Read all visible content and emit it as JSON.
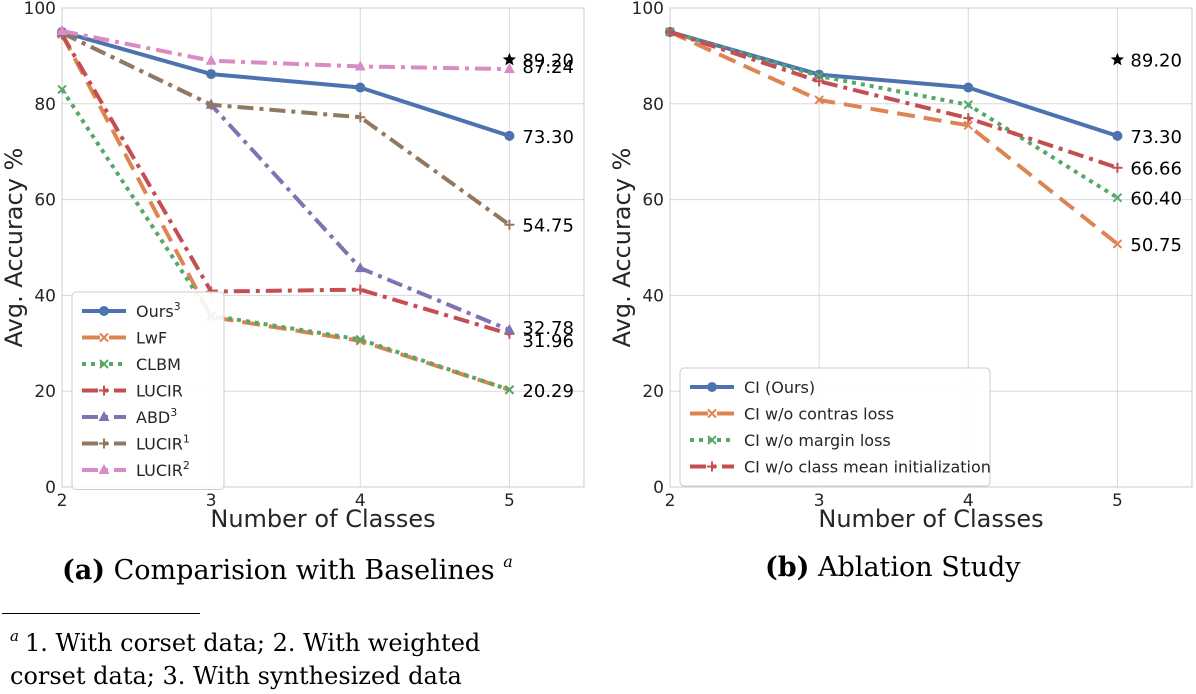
{
  "chart_data": [
    {
      "type": "line",
      "panel_caption": {
        "label": "(a)",
        "text": "Comparision with Baselines",
        "superscript": "a"
      },
      "xlabel": "Number of Classes",
      "ylabel": "Avg. Accuracy %",
      "x": [
        2,
        3,
        4,
        5
      ],
      "xticks": [
        "2",
        "3",
        "4",
        "5"
      ],
      "yticks": [
        "0",
        "20",
        "40",
        "60",
        "80",
        "100"
      ],
      "ylim": [
        0,
        100
      ],
      "xlim": [
        2,
        5.5
      ],
      "grid": true,
      "legend_position": "lower-left",
      "series": [
        {
          "name": "Ours",
          "sup": "3",
          "values": [
            95.0,
            86.2,
            83.4,
            73.3
          ],
          "color": "#4c72b0",
          "dash": "solid",
          "marker": "circle"
        },
        {
          "name": "LwF",
          "sup": "",
          "values": [
            94.5,
            35.5,
            30.5,
            20.29
          ],
          "color": "#dd8452",
          "dash": "dashed",
          "marker": "x"
        },
        {
          "name": "CLBM",
          "sup": "",
          "values": [
            83.0,
            35.8,
            30.8,
            20.29
          ],
          "color": "#55a868",
          "dash": "dotted",
          "marker": "x"
        },
        {
          "name": "LUCIR",
          "sup": "",
          "values": [
            94.5,
            40.8,
            41.2,
            31.96
          ],
          "color": "#c44e52",
          "dash": "dashdot",
          "marker": "plus"
        },
        {
          "name": "ABD",
          "sup": "3",
          "values": [
            94.8,
            79.8,
            45.7,
            32.78
          ],
          "color": "#8172b3",
          "dash": "dashdot",
          "marker": "triangle"
        },
        {
          "name": "LUCIR",
          "sup": "1",
          "values": [
            94.8,
            79.8,
            77.2,
            54.75
          ],
          "color": "#937860",
          "dash": "dashdot",
          "marker": "plus"
        },
        {
          "name": "LUCIR",
          "sup": "2",
          "values": [
            95.2,
            89.0,
            87.8,
            87.24
          ],
          "color": "#da8bc3",
          "dash": "dashdot",
          "marker": "triangle"
        }
      ],
      "star_point": {
        "x": 5,
        "y": 89.2,
        "color": "#000000"
      },
      "annotations": [
        {
          "text": "89.20",
          "y": 89.2
        },
        {
          "text": "87.24",
          "y": 87.24
        },
        {
          "text": "73.30",
          "y": 73.3
        },
        {
          "text": "54.75",
          "y": 54.75
        },
        {
          "text": "32.78",
          "y": 32.78
        },
        {
          "text": "31.96",
          "y": 31.96
        },
        {
          "text": "20.29",
          "y": 20.29
        }
      ]
    },
    {
      "type": "line",
      "panel_caption": {
        "label": "(b)",
        "text": "Ablation Study",
        "superscript": ""
      },
      "xlabel": "Number of Classes",
      "ylabel": "Avg. Accuracy %",
      "x": [
        2,
        3,
        4,
        5
      ],
      "xticks": [
        "2",
        "3",
        "4",
        "5"
      ],
      "yticks": [
        "0",
        "20",
        "40",
        "60",
        "80",
        "100"
      ],
      "ylim": [
        0,
        100
      ],
      "xlim": [
        2,
        5.5
      ],
      "grid": true,
      "legend_position": "lower-left",
      "series": [
        {
          "name": "CI (Ours)",
          "sup": "",
          "values": [
            95.0,
            86.1,
            83.4,
            73.3
          ],
          "color": "#4c72b0",
          "dash": "solid",
          "marker": "circle"
        },
        {
          "name": "CI w/o contras loss",
          "sup": "",
          "values": [
            95.0,
            80.8,
            75.5,
            50.75
          ],
          "color": "#dd8452",
          "dash": "dashed",
          "marker": "x"
        },
        {
          "name": "CI w/o margin loss",
          "sup": "",
          "values": [
            95.0,
            85.8,
            79.8,
            60.4
          ],
          "color": "#55a868",
          "dash": "dotted",
          "marker": "x"
        },
        {
          "name": "CI w/o class mean initialization",
          "sup": "",
          "values": [
            95.0,
            84.7,
            77.0,
            66.66
          ],
          "color": "#c44e52",
          "dash": "dashdot",
          "marker": "plus"
        }
      ],
      "star_point": {
        "x": 5,
        "y": 89.2,
        "color": "#000000"
      },
      "annotations": [
        {
          "text": "89.20",
          "y": 89.2
        },
        {
          "text": "73.30",
          "y": 73.3
        },
        {
          "text": "66.66",
          "y": 66.66
        },
        {
          "text": "60.40",
          "y": 60.4
        },
        {
          "text": "50.75",
          "y": 50.75
        }
      ]
    }
  ],
  "footnote": {
    "marker": "a",
    "line1": "1. With corset data; 2. With weighted",
    "line2": "corset data; 3. With synthesized data"
  }
}
